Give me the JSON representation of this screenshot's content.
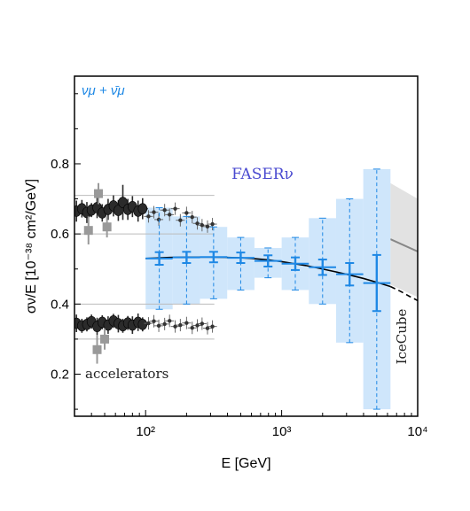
{
  "chart_data": {
    "type": "scatter",
    "xlabel": "E [GeV]",
    "ylabel": "σν/E [10⁻³⁸ cm²/GeV]",
    "x_scale": "log",
    "xlim": [
      30,
      10000
    ],
    "ylim": [
      0.08,
      1.05
    ],
    "x_tick_labels": [
      {
        "value": 100,
        "text": "10²"
      },
      {
        "value": 1000,
        "text": "10³"
      },
      {
        "value": 10000,
        "text": "10⁴"
      }
    ],
    "y_tick_labels": [
      {
        "value": 0.2,
        "text": "0.2"
      },
      {
        "value": 0.4,
        "text": "0.4"
      },
      {
        "value": 0.6,
        "text": "0.6"
      },
      {
        "value": 0.8,
        "text": "0.8"
      }
    ],
    "grid": false,
    "annotations": {
      "species": "νμ + ν̄μ",
      "faser": "FASERν",
      "accelerators": "accelerators",
      "icecube": "IceCube"
    },
    "colors": {
      "faser": "#1e88e5",
      "faser_band": "#cfe6fb",
      "faser_label": "#4a4ad0",
      "accelerator": "#2b2b2b",
      "icecube_band": "#e2e2e2",
      "icecube_line": "#888888"
    },
    "faser_points": [
      {
        "x": 126,
        "y": 0.53,
        "stat": 0.018,
        "sys_lo": 0.385,
        "sys_hi": 0.675,
        "w_lo": 100,
        "w_hi": 158
      },
      {
        "x": 200,
        "y": 0.533,
        "stat": 0.016,
        "sys_lo": 0.4,
        "sys_hi": 0.65,
        "w_lo": 158,
        "w_hi": 251
      },
      {
        "x": 316,
        "y": 0.534,
        "stat": 0.015,
        "sys_lo": 0.415,
        "sys_hi": 0.62,
        "w_lo": 251,
        "w_hi": 398
      },
      {
        "x": 500,
        "y": 0.532,
        "stat": 0.015,
        "sys_lo": 0.44,
        "sys_hi": 0.59,
        "w_lo": 398,
        "w_hi": 631
      },
      {
        "x": 794,
        "y": 0.523,
        "stat": 0.016,
        "sys_lo": 0.475,
        "sys_hi": 0.56,
        "w_lo": 631,
        "w_hi": 1000
      },
      {
        "x": 1260,
        "y": 0.515,
        "stat": 0.018,
        "sys_lo": 0.44,
        "sys_hi": 0.59,
        "w_lo": 1000,
        "w_hi": 1585
      },
      {
        "x": 2000,
        "y": 0.505,
        "stat": 0.022,
        "sys_lo": 0.4,
        "sys_hi": 0.645,
        "w_lo": 1585,
        "w_hi": 2512
      },
      {
        "x": 3160,
        "y": 0.485,
        "stat": 0.032,
        "sys_lo": 0.29,
        "sys_hi": 0.7,
        "w_lo": 2512,
        "w_hi": 3981
      },
      {
        "x": 5000,
        "y": 0.46,
        "stat": 0.08,
        "sys_lo": 0.1,
        "sys_hi": 0.785,
        "w_lo": 3981,
        "w_hi": 6310
      }
    ],
    "theory_curve": {
      "solid": [
        [
          100,
          0.53
        ],
        [
          150,
          0.533
        ],
        [
          200,
          0.534
        ],
        [
          300,
          0.534
        ],
        [
          400,
          0.533
        ],
        [
          500,
          0.532
        ],
        [
          600,
          0.53
        ],
        [
          800,
          0.526
        ],
        [
          1000,
          0.521
        ],
        [
          1500,
          0.51
        ],
        [
          2000,
          0.5
        ],
        [
          3000,
          0.485
        ],
        [
          4000,
          0.473
        ],
        [
          5000,
          0.462
        ],
        [
          6300,
          0.45
        ]
      ],
      "dashed": [
        [
          6300,
          0.45
        ],
        [
          7500,
          0.436
        ],
        [
          8700,
          0.422
        ],
        [
          10000,
          0.41
        ]
      ]
    },
    "icecube": {
      "x_start": 6300,
      "band_start": [
        0.455,
        0.745
      ],
      "band_end": [
        0.42,
        0.7
      ],
      "line": [
        [
          6300,
          0.585
        ],
        [
          10000,
          0.55
        ]
      ]
    },
    "accelerator_bands": {
      "nu_upper": 0.6,
      "nu_lower": 0.71,
      "nubar_upper": 0.4,
      "nubar_lower": 0.3
    },
    "accelerator_neutrino": [
      {
        "x": 31,
        "y": 0.665,
        "e": 0.03
      },
      {
        "x": 34,
        "y": 0.672,
        "e": 0.025
      },
      {
        "x": 37,
        "y": 0.661,
        "e": 0.03
      },
      {
        "x": 40,
        "y": 0.668,
        "e": 0.02
      },
      {
        "x": 44,
        "y": 0.675,
        "e": 0.03
      },
      {
        "x": 48,
        "y": 0.66,
        "e": 0.025
      },
      {
        "x": 53,
        "y": 0.67,
        "e": 0.03
      },
      {
        "x": 58,
        "y": 0.68,
        "e": 0.03
      },
      {
        "x": 63,
        "y": 0.667,
        "e": 0.03
      },
      {
        "x": 68,
        "y": 0.69,
        "e": 0.05
      },
      {
        "x": 74,
        "y": 0.67,
        "e": 0.03
      },
      {
        "x": 80,
        "y": 0.678,
        "e": 0.03
      },
      {
        "x": 88,
        "y": 0.665,
        "e": 0.03
      },
      {
        "x": 95,
        "y": 0.672,
        "e": 0.03
      }
    ],
    "accelerator_neutrino_grey": [
      {
        "x": 38,
        "y": 0.61,
        "e": 0.04
      },
      {
        "x": 45,
        "y": 0.715,
        "e": 0.03
      },
      {
        "x": 52,
        "y": 0.62,
        "e": 0.03
      }
    ],
    "accelerator_neutrino_scatter": [
      {
        "x": 105,
        "y": 0.65
      },
      {
        "x": 115,
        "y": 0.662
      },
      {
        "x": 125,
        "y": 0.641
      },
      {
        "x": 138,
        "y": 0.668
      },
      {
        "x": 150,
        "y": 0.655
      },
      {
        "x": 165,
        "y": 0.672
      },
      {
        "x": 180,
        "y": 0.639
      },
      {
        "x": 200,
        "y": 0.66
      },
      {
        "x": 220,
        "y": 0.648
      },
      {
        "x": 240,
        "y": 0.63
      },
      {
        "x": 260,
        "y": 0.625
      },
      {
        "x": 285,
        "y": 0.621
      },
      {
        "x": 310,
        "y": 0.628
      }
    ],
    "accelerator_antineutrino": [
      {
        "x": 31,
        "y": 0.345,
        "e": 0.025
      },
      {
        "x": 34,
        "y": 0.338,
        "e": 0.02
      },
      {
        "x": 37,
        "y": 0.342,
        "e": 0.02
      },
      {
        "x": 40,
        "y": 0.35,
        "e": 0.02
      },
      {
        "x": 44,
        "y": 0.336,
        "e": 0.025
      },
      {
        "x": 48,
        "y": 0.348,
        "e": 0.02
      },
      {
        "x": 53,
        "y": 0.34,
        "e": 0.025
      },
      {
        "x": 58,
        "y": 0.352,
        "e": 0.02
      },
      {
        "x": 63,
        "y": 0.344,
        "e": 0.025
      },
      {
        "x": 68,
        "y": 0.338,
        "e": 0.02
      },
      {
        "x": 74,
        "y": 0.346,
        "e": 0.02
      },
      {
        "x": 80,
        "y": 0.34,
        "e": 0.025
      },
      {
        "x": 88,
        "y": 0.348,
        "e": 0.025
      },
      {
        "x": 95,
        "y": 0.342,
        "e": 0.02
      }
    ],
    "accelerator_antineutrino_grey": [
      {
        "x": 44,
        "y": 0.27,
        "e": 0.04
      },
      {
        "x": 50,
        "y": 0.3,
        "e": 0.03
      }
    ],
    "accelerator_antineutrino_scatter": [
      {
        "x": 105,
        "y": 0.345
      },
      {
        "x": 115,
        "y": 0.351
      },
      {
        "x": 125,
        "y": 0.338
      },
      {
        "x": 138,
        "y": 0.343
      },
      {
        "x": 150,
        "y": 0.352
      },
      {
        "x": 165,
        "y": 0.336
      },
      {
        "x": 180,
        "y": 0.34
      },
      {
        "x": 200,
        "y": 0.346
      },
      {
        "x": 220,
        "y": 0.332
      },
      {
        "x": 240,
        "y": 0.339
      },
      {
        "x": 260,
        "y": 0.344
      },
      {
        "x": 285,
        "y": 0.331
      },
      {
        "x": 310,
        "y": 0.336
      }
    ]
  }
}
